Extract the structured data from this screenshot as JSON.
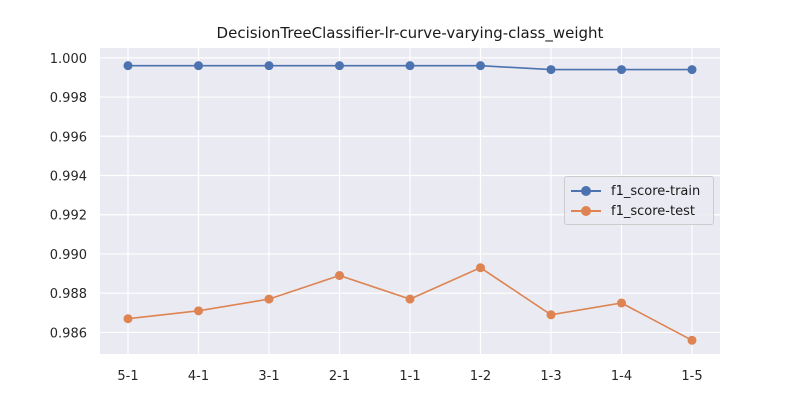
{
  "chart_data": {
    "type": "line",
    "title": "DecisionTreeClassifier-lr-curve-varying-class_weight",
    "xlabel": "",
    "ylabel": "",
    "categories": [
      "5-1",
      "4-1",
      "3-1",
      "2-1",
      "1-1",
      "1-2",
      "1-3",
      "1-4",
      "1-5"
    ],
    "ylim": [
      0.9849,
      1.0005
    ],
    "yticks": [
      0.986,
      0.988,
      0.99,
      0.992,
      0.994,
      0.996,
      0.998,
      1.0
    ],
    "ytick_labels": [
      "0.986",
      "0.988",
      "0.990",
      "0.992",
      "0.994",
      "0.996",
      "0.998",
      "1.000"
    ],
    "grid": true,
    "legend_position": "center-right",
    "series": [
      {
        "name": "f1_score-train",
        "color": "#4c72b0",
        "values": [
          0.9996,
          0.9996,
          0.9996,
          0.9996,
          0.9996,
          0.9996,
          0.9994,
          0.9994,
          0.9994
        ]
      },
      {
        "name": "f1_score-test",
        "color": "#dd8452",
        "values": [
          0.9867,
          0.9871,
          0.9877,
          0.9889,
          0.9877,
          0.9893,
          0.9869,
          0.9875,
          0.9856
        ]
      }
    ]
  }
}
